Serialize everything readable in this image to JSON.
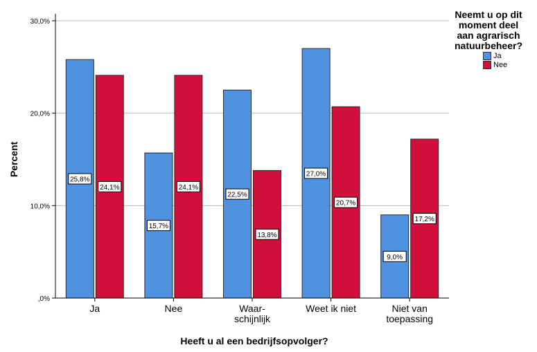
{
  "chart_data": {
    "type": "bar",
    "title": "",
    "xlabel": "Heeft u al een bedrijfsopvolger?",
    "ylabel": "Percent",
    "categories": [
      "Ja",
      "Nee",
      "Waar-\nschijnlijk",
      "Weet ik niet",
      "Niet van\ntoepassing"
    ],
    "series": [
      {
        "name": "Ja",
        "values": [
          25.8,
          15.7,
          22.5,
          27.0,
          9.0
        ],
        "labels": [
          "25,8%",
          "15,7%",
          "22,5%",
          "27,0%",
          "9,0%"
        ],
        "color": "#5192E0"
      },
      {
        "name": "Nee",
        "values": [
          24.1,
          24.1,
          13.8,
          20.7,
          17.2
        ],
        "labels": [
          "24,1%",
          "24,1%",
          "13,8%",
          "20,7%",
          "17,2%"
        ],
        "color": "#D0103B"
      }
    ],
    "ylim": [
      0,
      30
    ],
    "yticks": [
      0,
      10,
      20,
      30
    ],
    "ytick_labels": [
      ",0%",
      "10,0%",
      "20,0%",
      "30,0%"
    ],
    "grid": true,
    "legend": {
      "title": "Neemt u op dit\nmoment deel\naan agrarisch\nnatuurbeheer?",
      "position": "top-right"
    }
  }
}
